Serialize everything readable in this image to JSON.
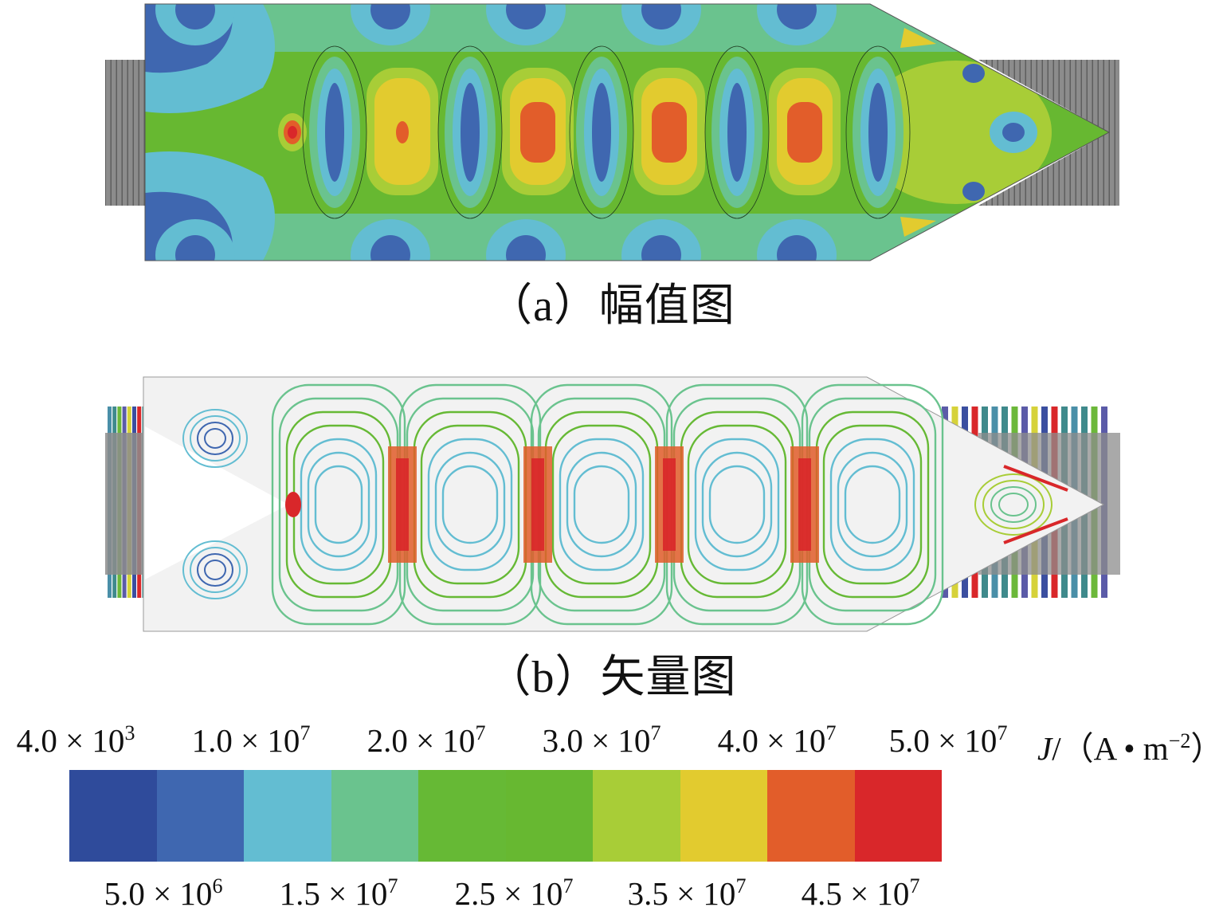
{
  "panels": {
    "a": {
      "caption": "（a）幅值图"
    },
    "b": {
      "caption": "（b）矢量图"
    }
  },
  "legend": {
    "unit_symbol": "J",
    "unit_rest": "/（A • m",
    "unit_exp": "−2",
    "unit_close": "）",
    "top_ticks": [
      {
        "mant": "4.0 × 10",
        "exp": "3"
      },
      {
        "mant": "1.0 × 10",
        "exp": "7"
      },
      {
        "mant": "2.0 × 10",
        "exp": "7"
      },
      {
        "mant": "3.0 × 10",
        "exp": "7"
      },
      {
        "mant": "4.0 × 10",
        "exp": "7"
      },
      {
        "mant": "5.0 × 10",
        "exp": "7"
      }
    ],
    "bottom_ticks": [
      {
        "mant": "5.0 × 10",
        "exp": "6"
      },
      {
        "mant": "1.5 × 10",
        "exp": "7"
      },
      {
        "mant": "2.5 × 10",
        "exp": "7"
      },
      {
        "mant": "3.5 × 10",
        "exp": "7"
      },
      {
        "mant": "4.5 × 10",
        "exp": "7"
      }
    ],
    "colors": [
      "#2f4b9b",
      "#3f67b0",
      "#63bdd2",
      "#6ac38e",
      "#66b935",
      "#67b831",
      "#a8cd37",
      "#e2cb2f",
      "#e25d2a",
      "#d9272a"
    ]
  },
  "colors": {
    "coil": "#8c8c8c",
    "coil_line": "#5e5e5e",
    "domain_bg_b": "#f2f2f2"
  }
}
